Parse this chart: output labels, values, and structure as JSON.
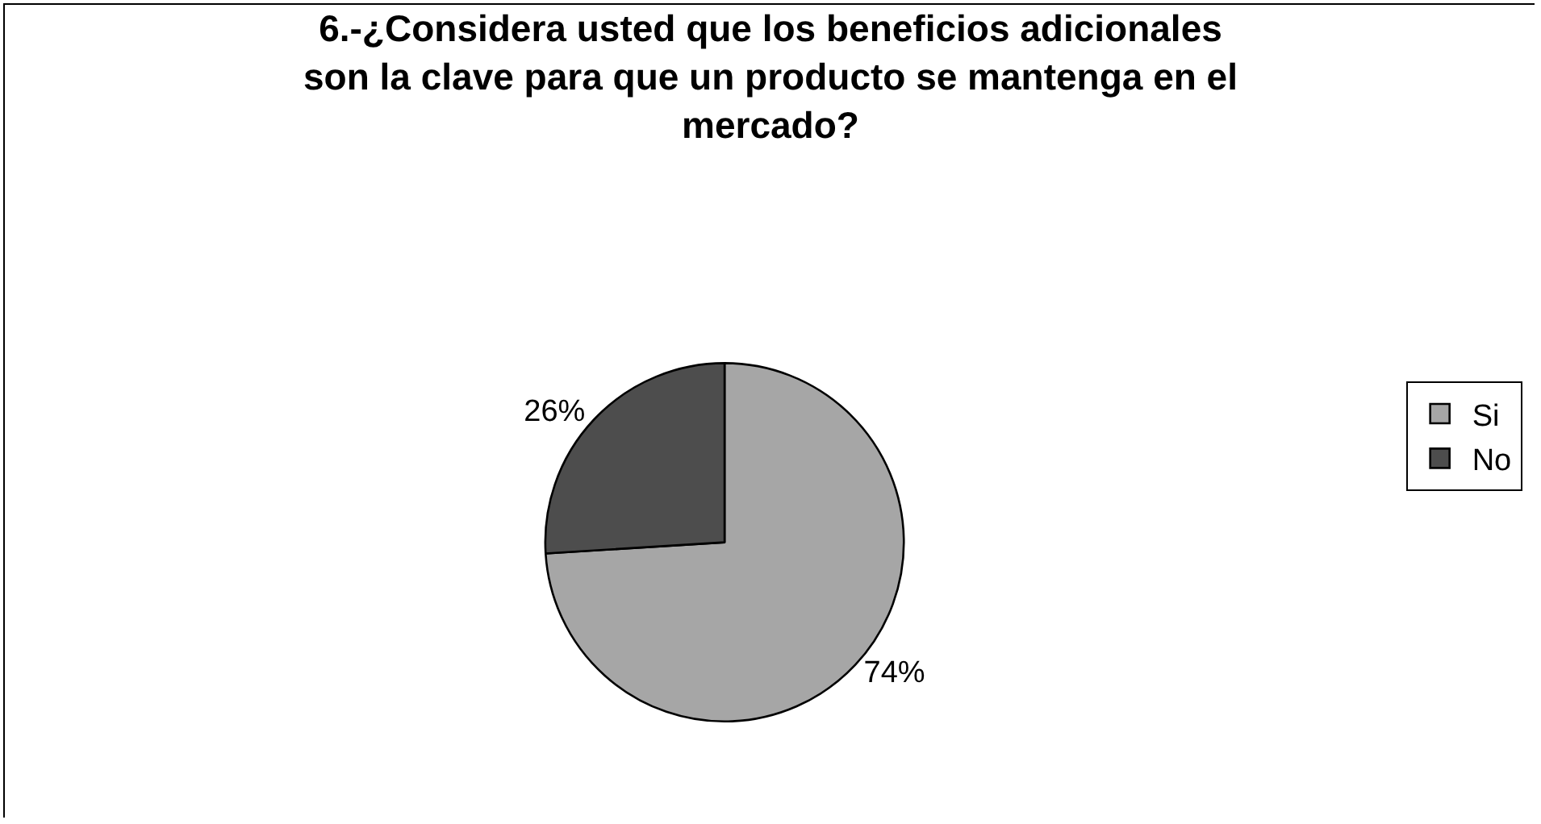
{
  "chart_data": {
    "type": "pie",
    "title": "6.-¿Considera usted que los beneficios adicionales son la clave para que un producto se mantenga en el mercado?",
    "categories": [
      "Si",
      "No"
    ],
    "values": [
      74,
      26
    ],
    "colors": [
      "#a6a6a6",
      "#4d4d4d"
    ],
    "value_labels": [
      "74%",
      "26%"
    ],
    "legend": "right"
  }
}
